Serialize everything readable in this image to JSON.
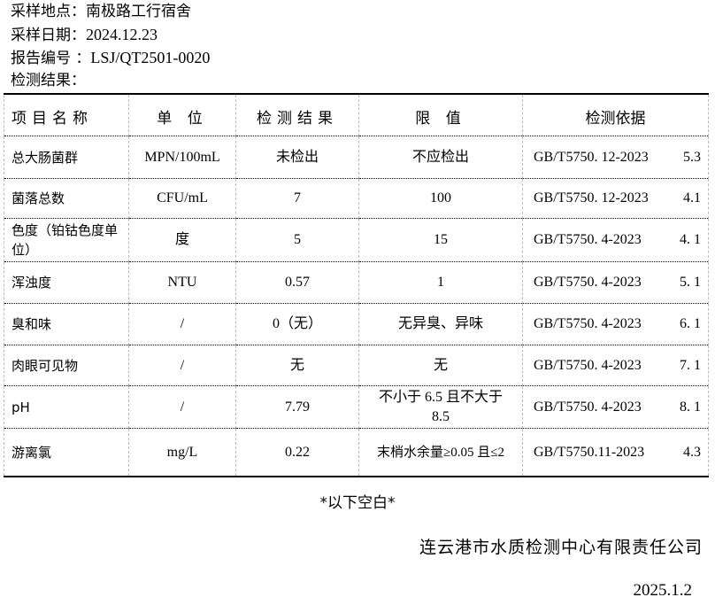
{
  "header": {
    "site_label": "采样地点：",
    "site_value": "南极路工行宿舍",
    "date_label": "采样日期：",
    "date_value": "2024.12.23",
    "report_label": "报告编号 ：",
    "report_value": "LSJ/QT2501-0020",
    "results_label": "检测结果："
  },
  "table": {
    "columns": [
      "项目名称",
      "单 位",
      "检测结果",
      "限 值",
      "检测依据"
    ],
    "rows": [
      {
        "item": "总大肠菌群",
        "unit": "MPN/100mL",
        "result": "未检出",
        "limit": "不应检出",
        "basis": "GB/T5750. 12-2023",
        "clause": "5.3"
      },
      {
        "item": "菌落总数",
        "unit": "CFU/mL",
        "result": "7",
        "limit": "100",
        "basis": "GB/T5750. 12-2023",
        "clause": "4.1"
      },
      {
        "item": "色度（铂钴色度单位）",
        "unit": "度",
        "result": "5",
        "limit": "15",
        "basis": "GB/T5750. 4-2023",
        "clause": "4. 1"
      },
      {
        "item": "浑浊度",
        "unit": "NTU",
        "result": "0.57",
        "limit": "1",
        "basis": "GB/T5750. 4-2023",
        "clause": "5. 1"
      },
      {
        "item": "臭和味",
        "unit": "/",
        "result": "0（无）",
        "limit": "无异臭、异味",
        "basis": "GB/T5750. 4-2023",
        "clause": "6. 1"
      },
      {
        "item": "肉眼可见物",
        "unit": "/",
        "result": "无",
        "limit": "无",
        "basis": "GB/T5750. 4-2023",
        "clause": "7. 1"
      },
      {
        "item": "pH",
        "unit": "/",
        "result": "7.79",
        "limit": "不小于 6.5 且不大于 8.5",
        "basis": "GB/T5750. 4-2023",
        "clause": "8. 1"
      },
      {
        "item": "游离氯",
        "unit": "mg/L",
        "result": "0.22",
        "limit": "末梢水余量≥0.05 且≤2",
        "basis": "GB/T5750.11-2023",
        "clause": "4.3"
      }
    ]
  },
  "footer": {
    "blank_note": "*以下空白*",
    "company": "连云港市水质检测中心有限责任公司",
    "date": "2025.1.2"
  }
}
